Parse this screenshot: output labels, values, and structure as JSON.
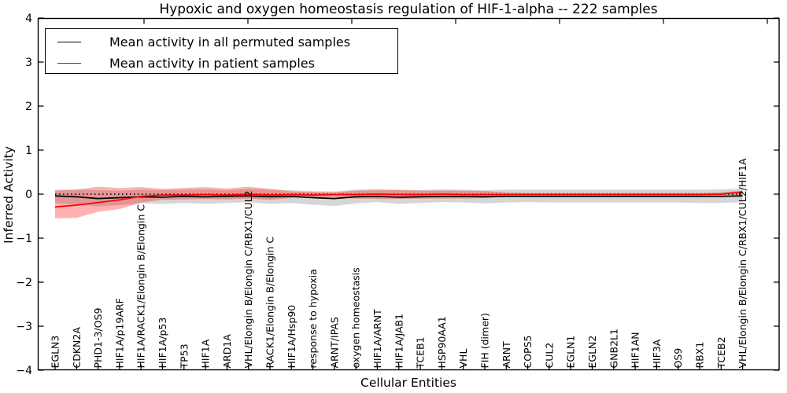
{
  "figure": {
    "title": "Hypoxic and oxygen homeostasis regulation of HIF-1-alpha -- 222 samples",
    "x_axis_label": "Cellular Entities",
    "y_axis_label": "Inferred Activity",
    "legend": {
      "permuted_label": "Mean activity in all permuted samples",
      "patient_label": "Mean activity in patient samples"
    }
  },
  "chart_data": {
    "type": "line",
    "title": "Hypoxic and oxygen homeostasis regulation of HIF-1-alpha -- 222 samples",
    "xlabel": "Cellular Entities",
    "ylabel": "Inferred Activity",
    "ylim": [
      -4,
      4
    ],
    "yticks": [
      4,
      3,
      2,
      1,
      0,
      -1,
      -2,
      -3,
      -4
    ],
    "grid": false,
    "legend_position": "upper left",
    "zero_line": {
      "y": 0,
      "style": "dotted",
      "color": "#000000"
    },
    "categories": [
      "EGLN3",
      "CDKN2A",
      "PHD1-3/OS9",
      "HIF1A/p19ARF",
      "HIF1A/RACK1/Elongin B/Elongin C",
      "HIF1A/p53",
      "TP53",
      "HIF1A",
      "ARD1A",
      "VHL/Elongin B/Elongin C/RBX1/CUL2",
      "RACK1/Elongin B/Elongin C",
      "HIF1A/Hsp90",
      "response to hypoxia",
      "ARNT/IPAS",
      "oxygen homeostasis",
      "HIF1A/ARNT",
      "HIF1A/JAB1",
      "TCEB1",
      "HSP90AA1",
      "VHL",
      "FIH (dimer)",
      "ARNT",
      "COPS5",
      "CUL2",
      "EGLN1",
      "EGLN2",
      "GNB2L1",
      "HIF1AN",
      "HIF3A",
      "OS9",
      "RBX1",
      "TCEB2",
      "VHL/Elongin B/Elongin C/RBX1/CUL2/HIF1A"
    ],
    "series": [
      {
        "name": "Mean activity in all permuted samples",
        "color": "#000000",
        "band_color": "rgba(0,0,0,0.16)",
        "values": [
          -0.04,
          -0.06,
          -0.1,
          -0.08,
          -0.06,
          -0.07,
          -0.05,
          -0.06,
          -0.05,
          -0.04,
          -0.06,
          -0.05,
          -0.08,
          -0.1,
          -0.06,
          -0.05,
          -0.07,
          -0.06,
          -0.05,
          -0.05,
          -0.06,
          -0.05,
          -0.05,
          -0.05,
          -0.05,
          -0.05,
          -0.05,
          -0.05,
          -0.05,
          -0.05,
          -0.05,
          -0.05,
          -0.04
        ],
        "band_upper": [
          0.1,
          0.11,
          0.09,
          0.08,
          0.1,
          0.09,
          0.1,
          0.11,
          0.09,
          0.12,
          0.1,
          0.09,
          0.07,
          0.06,
          0.1,
          0.12,
          0.1,
          0.09,
          0.11,
          0.1,
          0.09,
          0.1,
          0.1,
          0.1,
          0.1,
          0.1,
          0.1,
          0.1,
          0.1,
          0.1,
          0.1,
          0.11,
          0.12
        ],
        "band_lower": [
          -0.2,
          -0.24,
          -0.28,
          -0.25,
          -0.21,
          -0.22,
          -0.2,
          -0.22,
          -0.2,
          -0.18,
          -0.22,
          -0.2,
          -0.24,
          -0.27,
          -0.21,
          -0.18,
          -0.22,
          -0.2,
          -0.18,
          -0.19,
          -0.21,
          -0.19,
          -0.18,
          -0.19,
          -0.19,
          -0.19,
          -0.19,
          -0.19,
          -0.19,
          -0.19,
          -0.2,
          -0.2,
          -0.18
        ]
      },
      {
        "name": "Mean activity in patient samples",
        "color": "#ff0000",
        "band_color": "rgba(255,0,0,0.30)",
        "values": [
          -0.29,
          -0.25,
          -0.19,
          -0.13,
          -0.05,
          -0.02,
          -0.02,
          -0.01,
          -0.02,
          0.0,
          -0.02,
          -0.01,
          -0.02,
          -0.01,
          -0.01,
          0.0,
          -0.01,
          -0.01,
          0.0,
          -0.01,
          -0.01,
          -0.01,
          -0.01,
          -0.01,
          -0.01,
          -0.01,
          -0.01,
          -0.01,
          -0.01,
          -0.01,
          -0.01,
          0.0,
          0.05
        ],
        "band_upper": [
          0.08,
          0.1,
          0.17,
          0.14,
          0.16,
          0.12,
          0.14,
          0.16,
          0.13,
          0.17,
          0.12,
          0.06,
          0.05,
          0.04,
          0.08,
          0.09,
          0.09,
          0.08,
          0.08,
          0.08,
          0.07,
          0.04,
          0.03,
          0.03,
          0.03,
          0.03,
          0.03,
          0.03,
          0.03,
          0.03,
          0.03,
          0.04,
          0.08
        ],
        "band_lower": [
          -0.55,
          -0.54,
          -0.4,
          -0.34,
          -0.19,
          -0.13,
          -0.12,
          -0.11,
          -0.12,
          -0.1,
          -0.13,
          -0.09,
          -0.08,
          -0.07,
          -0.1,
          -0.11,
          -0.11,
          -0.1,
          -0.1,
          -0.1,
          -0.09,
          -0.06,
          -0.05,
          -0.05,
          -0.05,
          -0.05,
          -0.05,
          -0.05,
          -0.05,
          -0.05,
          -0.05,
          -0.05,
          -0.03
        ]
      }
    ]
  }
}
